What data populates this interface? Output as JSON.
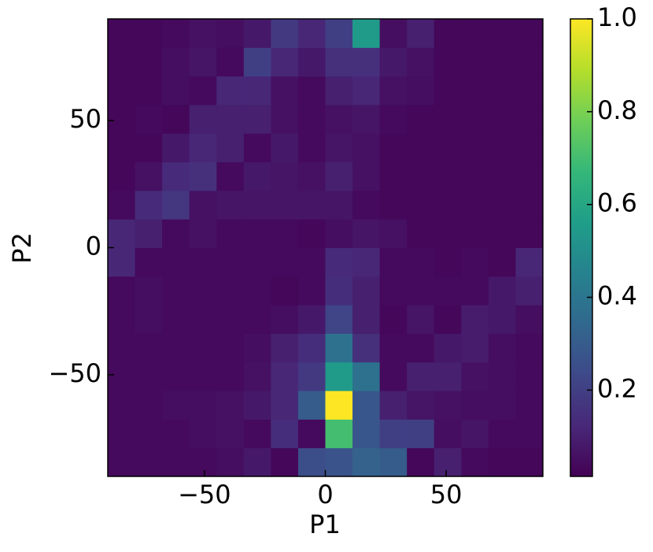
{
  "chart_data": {
    "type": "heatmap",
    "xlabel": "P1",
    "ylabel": "P2",
    "xbins": [
      -90,
      -78.75,
      -67.5,
      -56.25,
      -45,
      -33.75,
      -22.5,
      -11.25,
      0,
      11.25,
      22.5,
      33.75,
      45,
      56.25,
      67.5,
      78.75,
      90
    ],
    "ybins": [
      -90,
      -78.75,
      -67.5,
      -56.25,
      -45,
      -33.75,
      -22.5,
      -11.25,
      0,
      11.25,
      22.5,
      33.75,
      45,
      56.25,
      67.5,
      78.75,
      90
    ],
    "xlim": [
      -90,
      90
    ],
    "ylim": [
      -90,
      90
    ],
    "xticks": [
      {
        "value": -50,
        "label": "−50"
      },
      0,
      50
    ],
    "yticks": [
      {
        "value": -50,
        "label": "−50"
      },
      0,
      50
    ],
    "colormap": "viridis",
    "clim": [
      0.014,
      1
    ],
    "cticks": [
      0.2,
      0.4,
      0.6,
      0.8,
      {
        "value": 1,
        "label": "1.0"
      }
    ],
    "z": [
      [
        0.04,
        0.04,
        0.04,
        0.04,
        0.05,
        0.08,
        0.03,
        0.25,
        0.27,
        0.32,
        0.3,
        0.03,
        0.1,
        0.04,
        0.03,
        0.03
      ],
      [
        0.04,
        0.04,
        0.04,
        0.05,
        0.06,
        0.04,
        0.14,
        0.04,
        0.7,
        0.28,
        0.2,
        0.2,
        0.05,
        0.07,
        0.04,
        0.04
      ],
      [
        0.04,
        0.04,
        0.05,
        0.05,
        0.06,
        0.08,
        0.12,
        0.3,
        1.0,
        0.28,
        0.1,
        0.07,
        0.06,
        0.05,
        0.05,
        0.04
      ],
      [
        0.04,
        0.04,
        0.04,
        0.04,
        0.04,
        0.06,
        0.12,
        0.18,
        0.55,
        0.38,
        0.04,
        0.1,
        0.1,
        0.06,
        0.05,
        0.04
      ],
      [
        0.04,
        0.04,
        0.04,
        0.04,
        0.04,
        0.05,
        0.1,
        0.14,
        0.38,
        0.15,
        0.04,
        0.04,
        0.08,
        0.09,
        0.05,
        0.04
      ],
      [
        0.04,
        0.05,
        0.04,
        0.04,
        0.04,
        0.04,
        0.05,
        0.08,
        0.22,
        0.1,
        0.03,
        0.07,
        0.03,
        0.09,
        0.08,
        0.05
      ],
      [
        0.04,
        0.05,
        0.04,
        0.04,
        0.04,
        0.04,
        0.03,
        0.04,
        0.14,
        0.1,
        0.04,
        0.04,
        0.04,
        0.04,
        0.08,
        0.1
      ],
      [
        0.12,
        0.04,
        0.04,
        0.04,
        0.04,
        0.04,
        0.04,
        0.04,
        0.13,
        0.12,
        0.04,
        0.04,
        0.03,
        0.04,
        0.03,
        0.12
      ],
      [
        0.12,
        0.1,
        0.04,
        0.06,
        0.04,
        0.04,
        0.04,
        0.03,
        0.05,
        0.07,
        0.06,
        0.03,
        0.03,
        0.03,
        0.03,
        0.03
      ],
      [
        0.04,
        0.13,
        0.17,
        0.06,
        0.07,
        0.07,
        0.07,
        0.07,
        0.07,
        0.04,
        0.03,
        0.03,
        0.03,
        0.03,
        0.03,
        0.03
      ],
      [
        0.03,
        0.06,
        0.13,
        0.15,
        0.04,
        0.08,
        0.07,
        0.06,
        0.1,
        0.06,
        0.03,
        0.03,
        0.03,
        0.03,
        0.03,
        0.03
      ],
      [
        0.03,
        0.03,
        0.08,
        0.12,
        0.1,
        0.04,
        0.08,
        0.04,
        0.07,
        0.06,
        0.03,
        0.03,
        0.03,
        0.03,
        0.03,
        0.03
      ],
      [
        0.03,
        0.04,
        0.03,
        0.1,
        0.1,
        0.1,
        0.06,
        0.04,
        0.06,
        0.07,
        0.04,
        0.03,
        0.03,
        0.03,
        0.03,
        0.03
      ],
      [
        0.03,
        0.03,
        0.05,
        0.04,
        0.12,
        0.12,
        0.06,
        0.04,
        0.1,
        0.12,
        0.06,
        0.05,
        0.03,
        0.03,
        0.03,
        0.03
      ],
      [
        0.03,
        0.03,
        0.05,
        0.07,
        0.04,
        0.2,
        0.12,
        0.08,
        0.15,
        0.15,
        0.08,
        0.06,
        0.03,
        0.03,
        0.03,
        0.03
      ],
      [
        0.03,
        0.03,
        0.04,
        0.06,
        0.05,
        0.08,
        0.18,
        0.12,
        0.2,
        0.55,
        0.05,
        0.1,
        0.03,
        0.03,
        0.03,
        0.03
      ]
    ]
  }
}
